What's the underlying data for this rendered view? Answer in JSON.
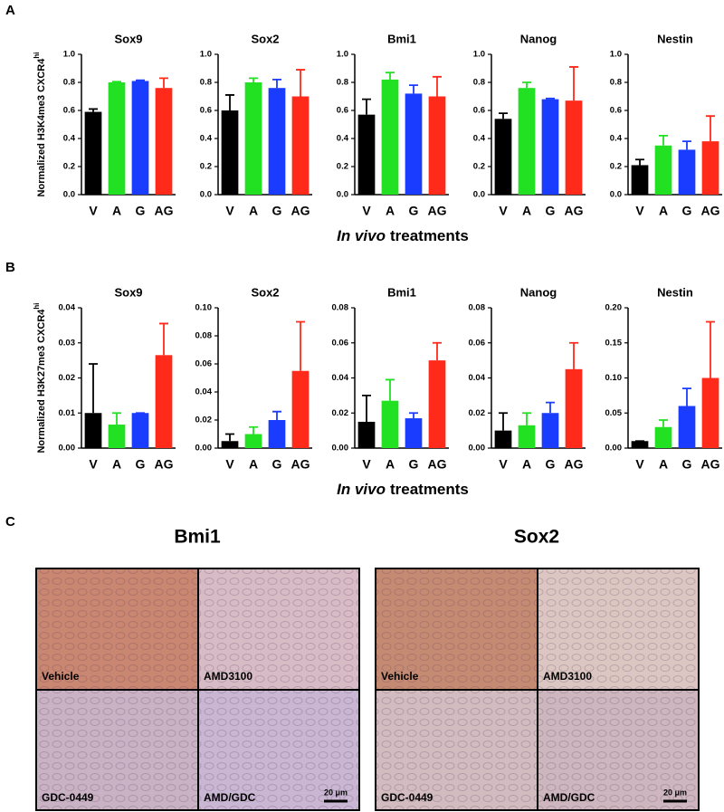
{
  "rows": [
    {
      "panel": "A",
      "ylabel": "Normalized H3K4me3 CXCR4",
      "ylabel_superscript": "hi",
      "xlabel_italic": "In vivo",
      "xlabel": "treatments"
    },
    {
      "panel": "B",
      "ylabel": "Normalized H3K27me3 CXCR4",
      "ylabel_superscript": "hi",
      "xlabel_italic": "In vivo",
      "xlabel": "treatments"
    }
  ],
  "chart_data": [
    {
      "type": "bar",
      "title": "Sox9",
      "categories": [
        "V",
        "A",
        "G",
        "AG"
      ],
      "values": [
        0.59,
        0.8,
        0.81,
        0.76
      ],
      "errors": [
        0.02,
        0.005,
        0.005,
        0.07
      ],
      "colors": [
        "#000000",
        "#22e022",
        "#1a3cff",
        "#ff2a1a"
      ],
      "ylim": [
        0,
        1
      ],
      "yticks": [
        {
          "value": 0,
          "label": "0.0"
        },
        0.2,
        0.4,
        0.6,
        0.8,
        {
          "value": 1,
          "label": "1.0"
        }
      ]
    },
    {
      "type": "bar",
      "title": "Sox2",
      "categories": [
        "V",
        "A",
        "G",
        "AG"
      ],
      "values": [
        0.6,
        0.8,
        0.76,
        0.7
      ],
      "errors": [
        0.11,
        0.03,
        0.06,
        0.19
      ],
      "colors": [
        "#000000",
        "#22e022",
        "#1a3cff",
        "#ff2a1a"
      ],
      "ylim": [
        0,
        1
      ],
      "yticks": [
        {
          "value": 0,
          "label": "0.0"
        },
        0.2,
        0.4,
        0.6,
        0.8,
        {
          "value": 1,
          "label": "1.0"
        }
      ]
    },
    {
      "type": "bar",
      "title": "Bmi1",
      "categories": [
        "V",
        "A",
        "G",
        "AG"
      ],
      "values": [
        0.57,
        0.82,
        0.72,
        0.7
      ],
      "errors": [
        0.11,
        0.05,
        0.06,
        0.14
      ],
      "colors": [
        "#000000",
        "#22e022",
        "#1a3cff",
        "#ff2a1a"
      ],
      "ylim": [
        0,
        1
      ],
      "yticks": [
        {
          "value": 0,
          "label": "0.0"
        },
        0.2,
        0.4,
        0.6,
        0.8,
        {
          "value": 1,
          "label": "1.0"
        }
      ]
    },
    {
      "type": "bar",
      "title": "Nanog",
      "categories": [
        "V",
        "A",
        "G",
        "AG"
      ],
      "values": [
        0.54,
        0.76,
        0.68,
        0.67
      ],
      "errors": [
        0.04,
        0.04,
        0.005,
        0.24
      ],
      "colors": [
        "#000000",
        "#22e022",
        "#1a3cff",
        "#ff2a1a"
      ],
      "ylim": [
        0,
        1
      ],
      "yticks": [
        {
          "value": 0,
          "label": "0.0"
        },
        0.2,
        0.4,
        0.6,
        0.8,
        {
          "value": 1,
          "label": "1.0"
        }
      ]
    },
    {
      "type": "bar",
      "title": "Nestin",
      "categories": [
        "V",
        "A",
        "G",
        "AG"
      ],
      "values": [
        0.21,
        0.35,
        0.32,
        0.38
      ],
      "errors": [
        0.04,
        0.07,
        0.06,
        0.18
      ],
      "colors": [
        "#000000",
        "#22e022",
        "#1a3cff",
        "#ff2a1a"
      ],
      "ylim": [
        0,
        1
      ],
      "yticks": [
        {
          "value": 0,
          "label": "0.0"
        },
        0.2,
        0.4,
        0.6,
        0.8,
        {
          "value": 1,
          "label": "1.0"
        }
      ]
    },
    {
      "type": "bar",
      "title": "Sox9",
      "categories": [
        "V",
        "A",
        "G",
        "AG"
      ],
      "values": [
        0.01,
        0.0067,
        0.01,
        0.0265
      ],
      "errors": [
        0.014,
        0.0033,
        0,
        0.009
      ],
      "colors": [
        "#000000",
        "#22e022",
        "#1a3cff",
        "#ff2a1a"
      ],
      "ylim": [
        0,
        0.04
      ],
      "yticks": [
        {
          "value": 0,
          "label": "0.00"
        },
        0.01,
        0.02,
        0.03,
        0.04
      ]
    },
    {
      "type": "bar",
      "title": "Sox2",
      "categories": [
        "V",
        "A",
        "G",
        "AG"
      ],
      "values": [
        0.005,
        0.01,
        0.02,
        0.055
      ],
      "errors": [
        0.005,
        0.005,
        0.006,
        0.035
      ],
      "colors": [
        "#000000",
        "#22e022",
        "#1a3cff",
        "#ff2a1a"
      ],
      "ylim": [
        0,
        0.1
      ],
      "yticks": [
        {
          "value": 0,
          "label": "0.00"
        },
        0.02,
        0.04,
        0.06,
        0.08,
        {
          "value": 0.1,
          "label": "0.10"
        }
      ]
    },
    {
      "type": "bar",
      "title": "Bmi1",
      "categories": [
        "V",
        "A",
        "G",
        "AG"
      ],
      "values": [
        0.015,
        0.027,
        0.017,
        0.05
      ],
      "errors": [
        0.015,
        0.012,
        0.003,
        0.01
      ],
      "colors": [
        "#000000",
        "#22e022",
        "#1a3cff",
        "#ff2a1a"
      ],
      "ylim": [
        0,
        0.08
      ],
      "yticks": [
        {
          "value": 0,
          "label": "0.00"
        },
        0.02,
        0.04,
        0.06,
        0.08
      ]
    },
    {
      "type": "bar",
      "title": "Nanog",
      "categories": [
        "V",
        "A",
        "G",
        "AG"
      ],
      "values": [
        0.01,
        0.013,
        0.02,
        0.045
      ],
      "errors": [
        0.01,
        0.007,
        0.006,
        0.015
      ],
      "colors": [
        "#000000",
        "#22e022",
        "#1a3cff",
        "#ff2a1a"
      ],
      "ylim": [
        0,
        0.08
      ],
      "yticks": [
        {
          "value": 0,
          "label": "0.00"
        },
        0.02,
        0.04,
        0.06,
        0.08
      ]
    },
    {
      "type": "bar",
      "title": "Nestin",
      "categories": [
        "V",
        "A",
        "G",
        "AG"
      ],
      "values": [
        0.01,
        0.03,
        0.06,
        0.1
      ],
      "errors": [
        0,
        0.01,
        0.025,
        0.08
      ],
      "colors": [
        "#000000",
        "#22e022",
        "#1a3cff",
        "#ff2a1a"
      ],
      "ylim": [
        0,
        0.2
      ],
      "yticks": [
        {
          "value": 0,
          "label": "0.00"
        },
        0.05,
        {
          "value": 0.1,
          "label": "0.10"
        },
        0.15,
        {
          "value": 0.2,
          "label": "0.20"
        }
      ]
    }
  ],
  "panel_c": {
    "panel": "C",
    "groups": [
      {
        "title": "Bmi1",
        "images": [
          "Vehicle",
          "AMD3100",
          "GDC-0449",
          "AMD/GDC"
        ],
        "scale_bar": "20 μm"
      },
      {
        "title": "Sox2",
        "images": [
          "Vehicle",
          "AMD3100",
          "GDC-0449",
          "AMD/GDC"
        ],
        "scale_bar": "20 μm"
      }
    ]
  }
}
